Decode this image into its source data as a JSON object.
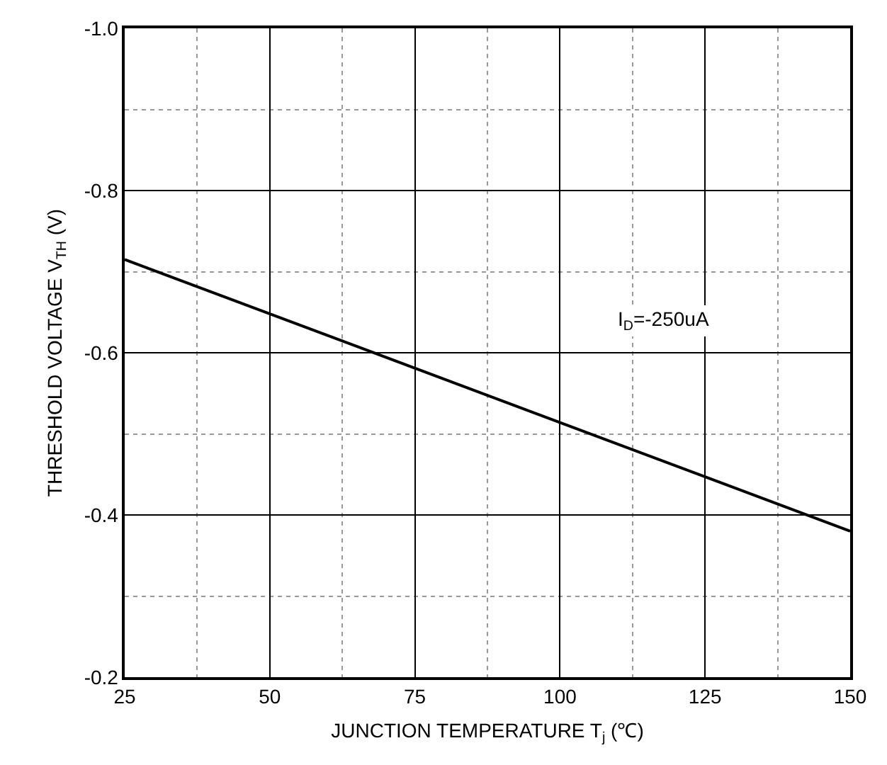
{
  "chart_data": {
    "type": "line",
    "xlabel": "JUNCTION TEMPERATURE T$_{j}$ (℃)",
    "ylabel": "THRESHOLD VOLTAGE V$_{TH}$ (V)",
    "x": [
      25,
      150
    ],
    "series": [
      {
        "color": "#000000",
        "values": [
          -0.715,
          -0.38
        ]
      }
    ],
    "xlim": [
      25,
      150
    ],
    "xticks": [
      25,
      {
        "value": 37.5,
        "label": null
      },
      50,
      {
        "value": 62.5,
        "label": null
      },
      75,
      {
        "value": 87.5,
        "label": null
      },
      100,
      {
        "value": 112.5,
        "label": null
      },
      125,
      {
        "value": 137.5,
        "label": null
      },
      150
    ],
    "ylim": [
      -0.2,
      -1.0
    ],
    "yticks": [
      -0.2,
      {
        "value": -0.3,
        "label": null
      },
      -0.4,
      {
        "value": -0.5,
        "label": null
      },
      -0.6,
      {
        "value": -0.7,
        "label": null
      },
      -0.8,
      {
        "value": -0.9,
        "label": null
      },
      {
        "value": -1.0,
        "label": "-1.0"
      }
    ],
    "grid": true,
    "legend": false,
    "marker": "none",
    "line_style": "solid",
    "annotations": [
      "I$_{D}$=-250uA"
    ]
  }
}
